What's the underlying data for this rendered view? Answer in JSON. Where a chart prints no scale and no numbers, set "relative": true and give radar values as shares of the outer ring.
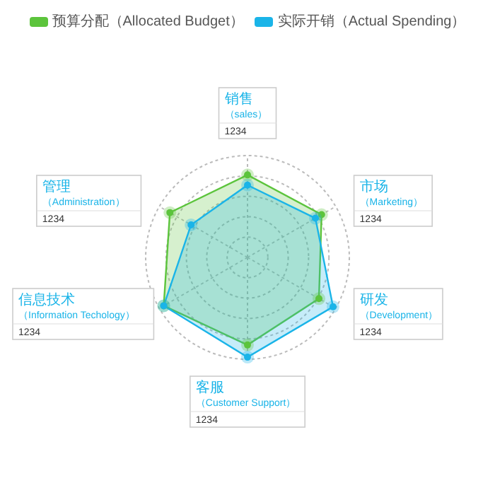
{
  "chart_data": {
    "type": "radar",
    "relative": true,
    "grid": true,
    "legend": "top",
    "marker": "circle",
    "categories": [
      "销售（sales）",
      "市场（Marketing）",
      "研发（Development）",
      "客服（Customer Support）",
      "信息技术（Information Techology）",
      "管理（Administration）"
    ],
    "series": [
      {
        "name": "预算分配（Allocated Budget）",
        "color": "#5cc43c",
        "values": [
          0.81,
          0.84,
          0.81,
          0.86,
          0.95,
          0.88
        ]
      },
      {
        "name": "实际开销（Actual Spending）",
        "color": "#1ab4e8",
        "values": [
          0.71,
          0.77,
          0.97,
          0.98,
          0.95,
          0.64
        ]
      }
    ],
    "annotations": [
      "1234",
      "1234",
      "1234",
      "1234",
      "1234",
      "1234"
    ]
  }
}
